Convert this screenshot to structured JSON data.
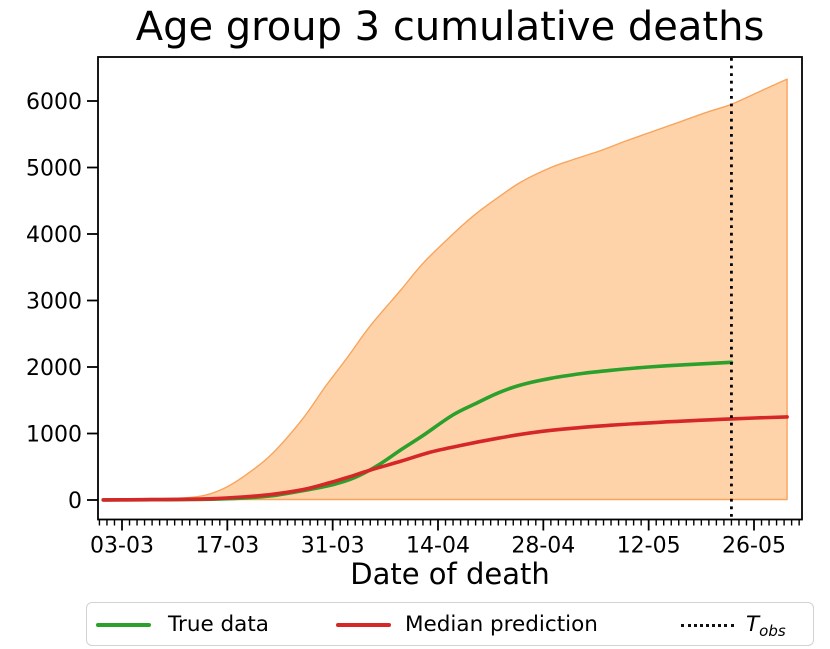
{
  "chart_data": {
    "type": "line",
    "title": "Age group 3 cumulative deaths",
    "xlabel": "Date of death",
    "ylabel": "",
    "x_unit": "days since 03-03",
    "x_tick_labels": [
      "03-03",
      "17-03",
      "31-03",
      "14-04",
      "28-04",
      "12-05",
      "26-05"
    ],
    "x_tick_days": [
      0,
      14,
      28,
      42,
      56,
      70,
      84
    ],
    "x_minor_tick_step_days": 1,
    "x_axis_range_days": [
      -3.2,
      90.4
    ],
    "y_ticks": [
      0,
      1000,
      2000,
      3000,
      4000,
      5000,
      6000
    ],
    "y_axis_range": [
      -290,
      6650
    ],
    "grid": false,
    "legend_position": "bottom",
    "t_obs_day": 81,
    "series": [
      {
        "name": "Prediction interval (upper bound)",
        "kind": "band",
        "fill_color": "#ffd3aa",
        "edge_color": "#f9a45c",
        "baseline_value": 8,
        "points_upper": [
          [
            -2.5,
            3
          ],
          [
            0,
            8
          ],
          [
            4,
            16
          ],
          [
            8,
            30
          ],
          [
            11,
            70
          ],
          [
            14,
            200
          ],
          [
            17,
            420
          ],
          [
            20,
            700
          ],
          [
            24,
            1220
          ],
          [
            27,
            1700
          ],
          [
            30,
            2150
          ],
          [
            33,
            2620
          ],
          [
            37,
            3150
          ],
          [
            40,
            3560
          ],
          [
            44,
            4000
          ],
          [
            47,
            4300
          ],
          [
            50,
            4550
          ],
          [
            53,
            4780
          ],
          [
            57,
            5000
          ],
          [
            60,
            5120
          ],
          [
            63.5,
            5250
          ],
          [
            67,
            5400
          ],
          [
            70,
            5520
          ],
          [
            74,
            5680
          ],
          [
            78,
            5840
          ],
          [
            81,
            5950
          ],
          [
            84.5,
            6130
          ],
          [
            88.4,
            6330
          ]
        ]
      },
      {
        "name": "True data",
        "kind": "line",
        "color": "#2ca02c",
        "points": [
          [
            -2.5,
            2
          ],
          [
            0,
            3
          ],
          [
            4,
            4
          ],
          [
            8,
            6
          ],
          [
            12,
            12
          ],
          [
            16,
            28
          ],
          [
            20,
            65
          ],
          [
            24,
            140
          ],
          [
            28,
            230
          ],
          [
            31,
            340
          ],
          [
            34,
            520
          ],
          [
            37,
            750
          ],
          [
            40,
            970
          ],
          [
            44,
            1280
          ],
          [
            47,
            1450
          ],
          [
            50,
            1610
          ],
          [
            53,
            1730
          ],
          [
            57,
            1830
          ],
          [
            61,
            1900
          ],
          [
            65,
            1950
          ],
          [
            70,
            2000
          ],
          [
            75,
            2035
          ],
          [
            81,
            2070
          ]
        ]
      },
      {
        "name": "Median prediction",
        "kind": "line",
        "color": "#d62728",
        "points": [
          [
            -2.5,
            2
          ],
          [
            0,
            3
          ],
          [
            4,
            6
          ],
          [
            8,
            10
          ],
          [
            12,
            20
          ],
          [
            16,
            45
          ],
          [
            20,
            85
          ],
          [
            24,
            155
          ],
          [
            27,
            240
          ],
          [
            30,
            340
          ],
          [
            33,
            450
          ],
          [
            37,
            580
          ],
          [
            41,
            720
          ],
          [
            45,
            820
          ],
          [
            50,
            930
          ],
          [
            55,
            1020
          ],
          [
            60,
            1080
          ],
          [
            65,
            1125
          ],
          [
            70,
            1160
          ],
          [
            75,
            1190
          ],
          [
            81,
            1220
          ],
          [
            88.4,
            1250
          ]
        ]
      },
      {
        "name": "T_obs",
        "kind": "vline",
        "color": "#000000",
        "style": "dotted",
        "day": 81
      }
    ]
  },
  "legend": {
    "items": [
      {
        "label": "True data",
        "sample": "line",
        "color": "#2ca02c"
      },
      {
        "label": "Median prediction",
        "sample": "line",
        "color": "#d62728"
      },
      {
        "label_main": "T",
        "label_sub": "obs",
        "sample": "dotted",
        "color": "#000000"
      }
    ]
  }
}
